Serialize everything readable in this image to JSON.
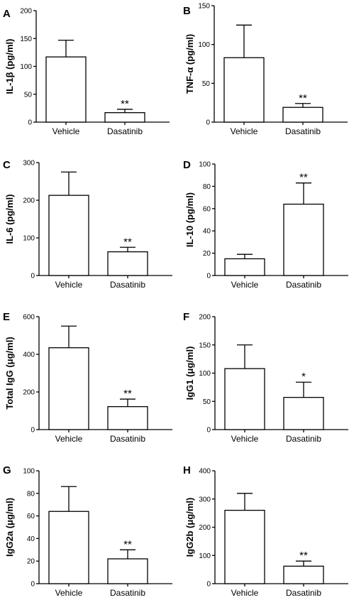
{
  "chart_data": [
    {
      "type": "bar",
      "panel": "A",
      "ylabel": "IL-1β (pg/ml)",
      "categories": [
        "Vehicle",
        "Dasatinib"
      ],
      "values": [
        117,
        17
      ],
      "errors": [
        30,
        6
      ],
      "significance": [
        "",
        "**"
      ],
      "ylim": [
        0,
        200
      ],
      "yticks": [
        "0",
        "50",
        "100",
        "150",
        "200"
      ]
    },
    {
      "type": "bar",
      "panel": "B",
      "ylabel": "TNF-α (pg/ml)",
      "categories": [
        "Vehicle",
        "Dasatinib"
      ],
      "values": [
        83,
        19
      ],
      "errors": [
        42,
        5
      ],
      "significance": [
        "",
        "**"
      ],
      "ylim": [
        0,
        150
      ],
      "yticks": [
        "0",
        "50",
        "100",
        "150"
      ]
    },
    {
      "type": "bar",
      "panel": "C",
      "ylabel": "IL-6 (pg/ml)",
      "categories": [
        "Vehicle",
        "Dasatinib"
      ],
      "values": [
        213,
        63
      ],
      "errors": [
        62,
        12
      ],
      "significance": [
        "",
        "**"
      ],
      "ylim": [
        0,
        300
      ],
      "yticks": [
        "0",
        "100",
        "200",
        "300"
      ]
    },
    {
      "type": "bar",
      "panel": "D",
      "ylabel": "IL-10 (pg/ml)",
      "categories": [
        "Vehicle",
        "Dasatinib"
      ],
      "values": [
        15,
        64
      ],
      "errors": [
        4,
        19
      ],
      "significance": [
        "",
        "**"
      ],
      "ylim": [
        0,
        100
      ],
      "yticks": [
        "0",
        "20",
        "40",
        "60",
        "80",
        "100"
      ]
    },
    {
      "type": "bar",
      "panel": "E",
      "ylabel": "Total IgG (μg/ml)",
      "categories": [
        "Vehicle",
        "Dasatinib"
      ],
      "values": [
        435,
        122
      ],
      "errors": [
        115,
        40
      ],
      "significance": [
        "",
        "**"
      ],
      "ylim": [
        0,
        600
      ],
      "yticks": [
        "0",
        "200",
        "400",
        "600"
      ]
    },
    {
      "type": "bar",
      "panel": "F",
      "ylabel": "IgG1 (μg/ml)",
      "categories": [
        "Vehicle",
        "Dasatinib"
      ],
      "values": [
        108,
        57
      ],
      "errors": [
        42,
        27
      ],
      "significance": [
        "",
        "*"
      ],
      "ylim": [
        0,
        200
      ],
      "yticks": [
        "0",
        "50",
        "100",
        "150",
        "200"
      ]
    },
    {
      "type": "bar",
      "panel": "G",
      "ylabel": "IgG2a (μg/ml)",
      "categories": [
        "Vehicle",
        "Dasatinib"
      ],
      "values": [
        64,
        22
      ],
      "errors": [
        22,
        8
      ],
      "significance": [
        "",
        "**"
      ],
      "ylim": [
        0,
        100
      ],
      "yticks": [
        "0",
        "20",
        "40",
        "60",
        "80",
        "100"
      ]
    },
    {
      "type": "bar",
      "panel": "H",
      "ylabel": "IgG2b (μg/ml)",
      "categories": [
        "Vehicle",
        "Dasatinib"
      ],
      "values": [
        260,
        62
      ],
      "errors": [
        60,
        18
      ],
      "significance": [
        "",
        "**"
      ],
      "ylim": [
        0,
        400
      ],
      "yticks": [
        "0",
        "100",
        "200",
        "300",
        "400"
      ]
    }
  ]
}
